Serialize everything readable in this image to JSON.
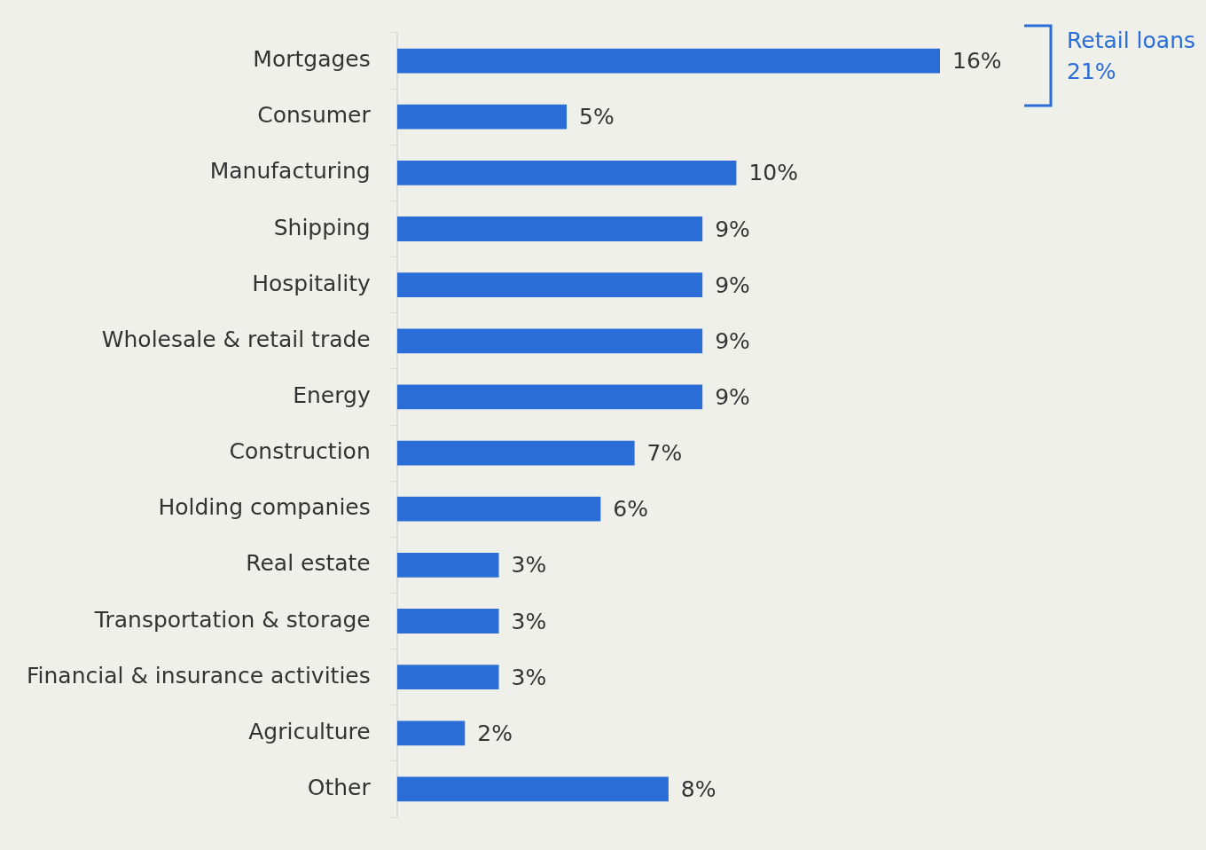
{
  "chart_data": {
    "type": "bar",
    "orientation": "horizontal",
    "categories": [
      "Mortgages",
      "Consumer",
      "Manufacturing",
      "Shipping",
      "Hospitality",
      "Wholesale & retail trade",
      "Energy",
      "Construction",
      "Holding companies",
      "Real estate",
      "Transportation & storage",
      "Financial & insurance activities",
      "Agriculture",
      "Other"
    ],
    "values": [
      16,
      5,
      10,
      9,
      9,
      9,
      9,
      7,
      6,
      3,
      3,
      3,
      2,
      8
    ],
    "color": "#2a6dd7",
    "data_labels": true,
    "value_labels": [
      "16%",
      "5%",
      "10%",
      "9%",
      "9%",
      "9%",
      "9%",
      "7%",
      "6%",
      "3%",
      "3%",
      "3%",
      "2%",
      "8%"
    ],
    "annotations": [
      "Retail loans 21%"
    ],
    "legend": false
  }
}
